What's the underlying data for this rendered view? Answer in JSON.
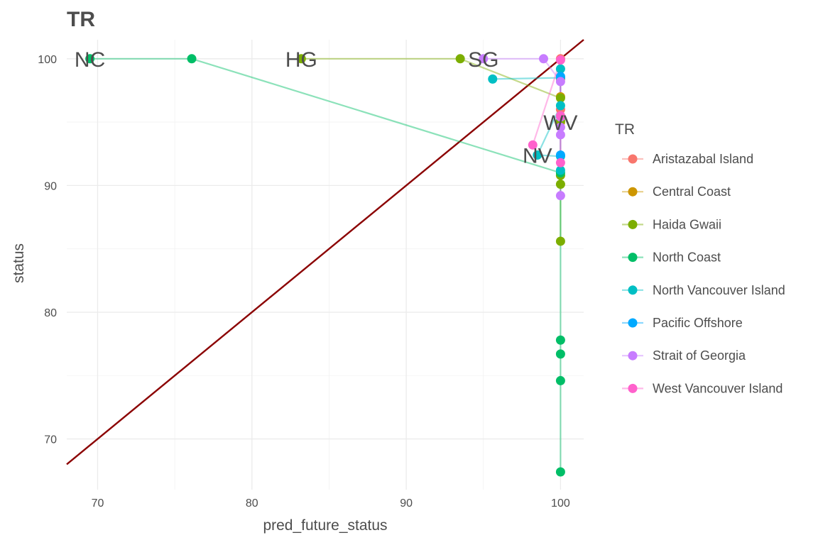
{
  "chart_data": {
    "type": "scatter",
    "title": "TR",
    "xlabel": "pred_future_status",
    "ylabel": "status",
    "xlim": [
      68,
      101.5
    ],
    "ylim": [
      66,
      101.5
    ],
    "x_ticks": [
      70,
      80,
      90,
      100
    ],
    "y_ticks": [
      70,
      80,
      90,
      100
    ],
    "grid": true,
    "legend": {
      "title": "TR",
      "position": "right"
    },
    "reference_line": {
      "slope": 1,
      "intercept": 0,
      "color": "#8B0000"
    },
    "series": [
      {
        "name": "Aristazabal Island",
        "color": "#F8766D",
        "points": [
          [
            100,
            100
          ],
          [
            100,
            98.5
          ],
          [
            100,
            96.0
          ]
        ]
      },
      {
        "name": "Central Coast",
        "color": "#CD9600",
        "points": [
          [
            100,
            98.4
          ],
          [
            100,
            97.0
          ],
          [
            100,
            95.0
          ]
        ]
      },
      {
        "name": "Haida Gwaii",
        "color": "#7CAE00",
        "points": [
          [
            83.2,
            100
          ],
          [
            93.5,
            100
          ],
          [
            100,
            96.9
          ],
          [
            100,
            95.1
          ],
          [
            100,
            90.8
          ],
          [
            100,
            90.1
          ],
          [
            100,
            85.6
          ]
        ]
      },
      {
        "name": "North Coast",
        "color": "#00BE67",
        "points": [
          [
            69.5,
            100
          ],
          [
            76.1,
            100
          ],
          [
            100,
            91.0
          ],
          [
            100,
            77.8
          ],
          [
            100,
            76.7
          ],
          [
            100,
            74.6
          ],
          [
            100,
            67.4
          ]
        ]
      },
      {
        "name": "North Vancouver Island",
        "color": "#00BFC4",
        "points": [
          [
            95.6,
            98.4
          ],
          [
            100,
            98.5
          ],
          [
            100,
            99.2
          ],
          [
            100,
            96.3
          ],
          [
            98.5,
            92.4
          ],
          [
            100,
            92.3
          ],
          [
            100,
            91.2
          ]
        ]
      },
      {
        "name": "Pacific Offshore",
        "color": "#00A9FF",
        "points": [
          [
            100,
            98.6
          ],
          [
            100,
            92.4
          ]
        ]
      },
      {
        "name": "Strait of Georgia",
        "color": "#C77CFF",
        "points": [
          [
            95.0,
            100
          ],
          [
            98.9,
            100
          ],
          [
            100,
            98.2
          ],
          [
            100,
            95.4
          ],
          [
            100,
            94.6
          ],
          [
            100,
            94.0
          ],
          [
            100,
            89.2
          ]
        ]
      },
      {
        "name": "West Vancouver Island",
        "color": "#FF61CC",
        "points": [
          [
            98.2,
            93.2
          ],
          [
            100,
            99.9
          ],
          [
            100,
            95.5
          ],
          [
            100,
            91.8
          ]
        ]
      }
    ],
    "annotations": [
      {
        "text": "NC",
        "x": 69.5,
        "y": 100
      },
      {
        "text": "HG",
        "x": 83.2,
        "y": 100
      },
      {
        "text": "SG",
        "x": 95.0,
        "y": 100
      },
      {
        "text": "WV",
        "x": 100,
        "y": 95.0
      },
      {
        "text": "NV",
        "x": 98.5,
        "y": 92.4
      }
    ]
  }
}
